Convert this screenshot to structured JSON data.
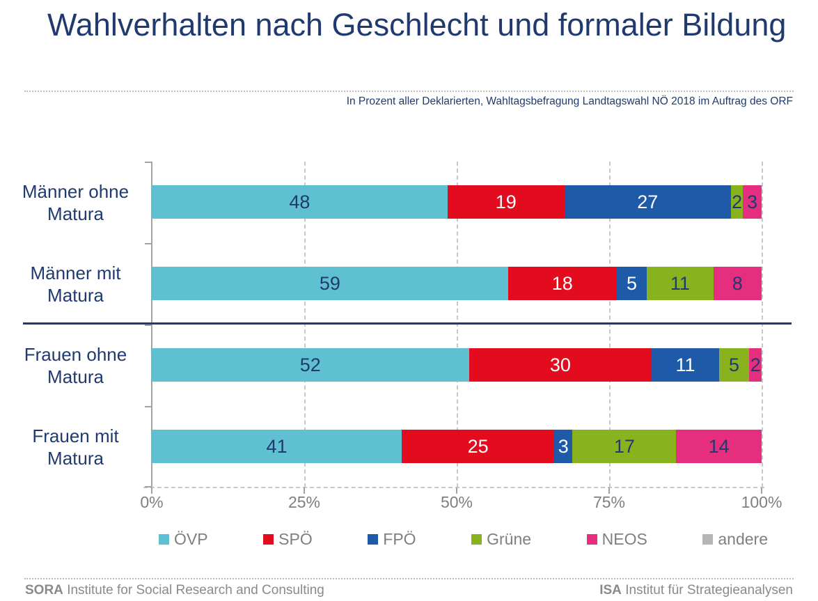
{
  "title": "Wahlverhalten nach Geschlecht und formaler Bildung",
  "subtitle": "In Prozent aller Deklarierten, Wahltagsbefragung Landtagswahl NÖ 2018 im Auftrag des ORF",
  "chart_data": {
    "type": "bar",
    "orientation": "horizontal",
    "stacked": true,
    "unit": "percent",
    "categories": [
      "Männer ohne Matura",
      "Männer mit Matura",
      "Frauen ohne Matura",
      "Frauen mit Matura"
    ],
    "series": [
      {
        "name": "ÖVP",
        "color": "#5fc0d2",
        "label_color": "#203a70",
        "values": [
          48,
          59,
          52,
          41
        ]
      },
      {
        "name": "SPÖ",
        "color": "#e30b1e",
        "label_color": "#ffffff",
        "values": [
          19,
          18,
          30,
          25
        ]
      },
      {
        "name": "FPÖ",
        "color": "#1f5aa8",
        "label_color": "#ffffff",
        "values": [
          27,
          5,
          11,
          3
        ]
      },
      {
        "name": "Grüne",
        "color": "#88b31e",
        "label_color": "#203a70",
        "values": [
          2,
          11,
          5,
          17
        ]
      },
      {
        "name": "NEOS",
        "color": "#e62e7e",
        "label_color": "#203a70",
        "values": [
          3,
          8,
          2,
          14
        ]
      },
      {
        "name": "andere",
        "color": "#b6b6b6",
        "label_color": "#203a70",
        "values": [
          0,
          0,
          0,
          0
        ]
      }
    ],
    "x_ticks": [
      "0%",
      "25%",
      "50%",
      "75%",
      "100%"
    ],
    "xlim": [
      0,
      100
    ],
    "grid": "dashed vertical gridlines at 25/50/75/100",
    "legend_position": "bottom",
    "group_divider_after_category_index": 1
  },
  "footer": {
    "left": {
      "org": "SORA",
      "text": "Institute for Social Research and Consulting"
    },
    "right": {
      "org": "ISA",
      "text": "Institut für Strategieanalysen"
    }
  },
  "colors": {
    "title_text": "#203a70",
    "axis_text": "#7f7f7f",
    "gridline": "#c7c7c7",
    "divider": "#203a70",
    "footer_text": "#8a8a8a"
  }
}
